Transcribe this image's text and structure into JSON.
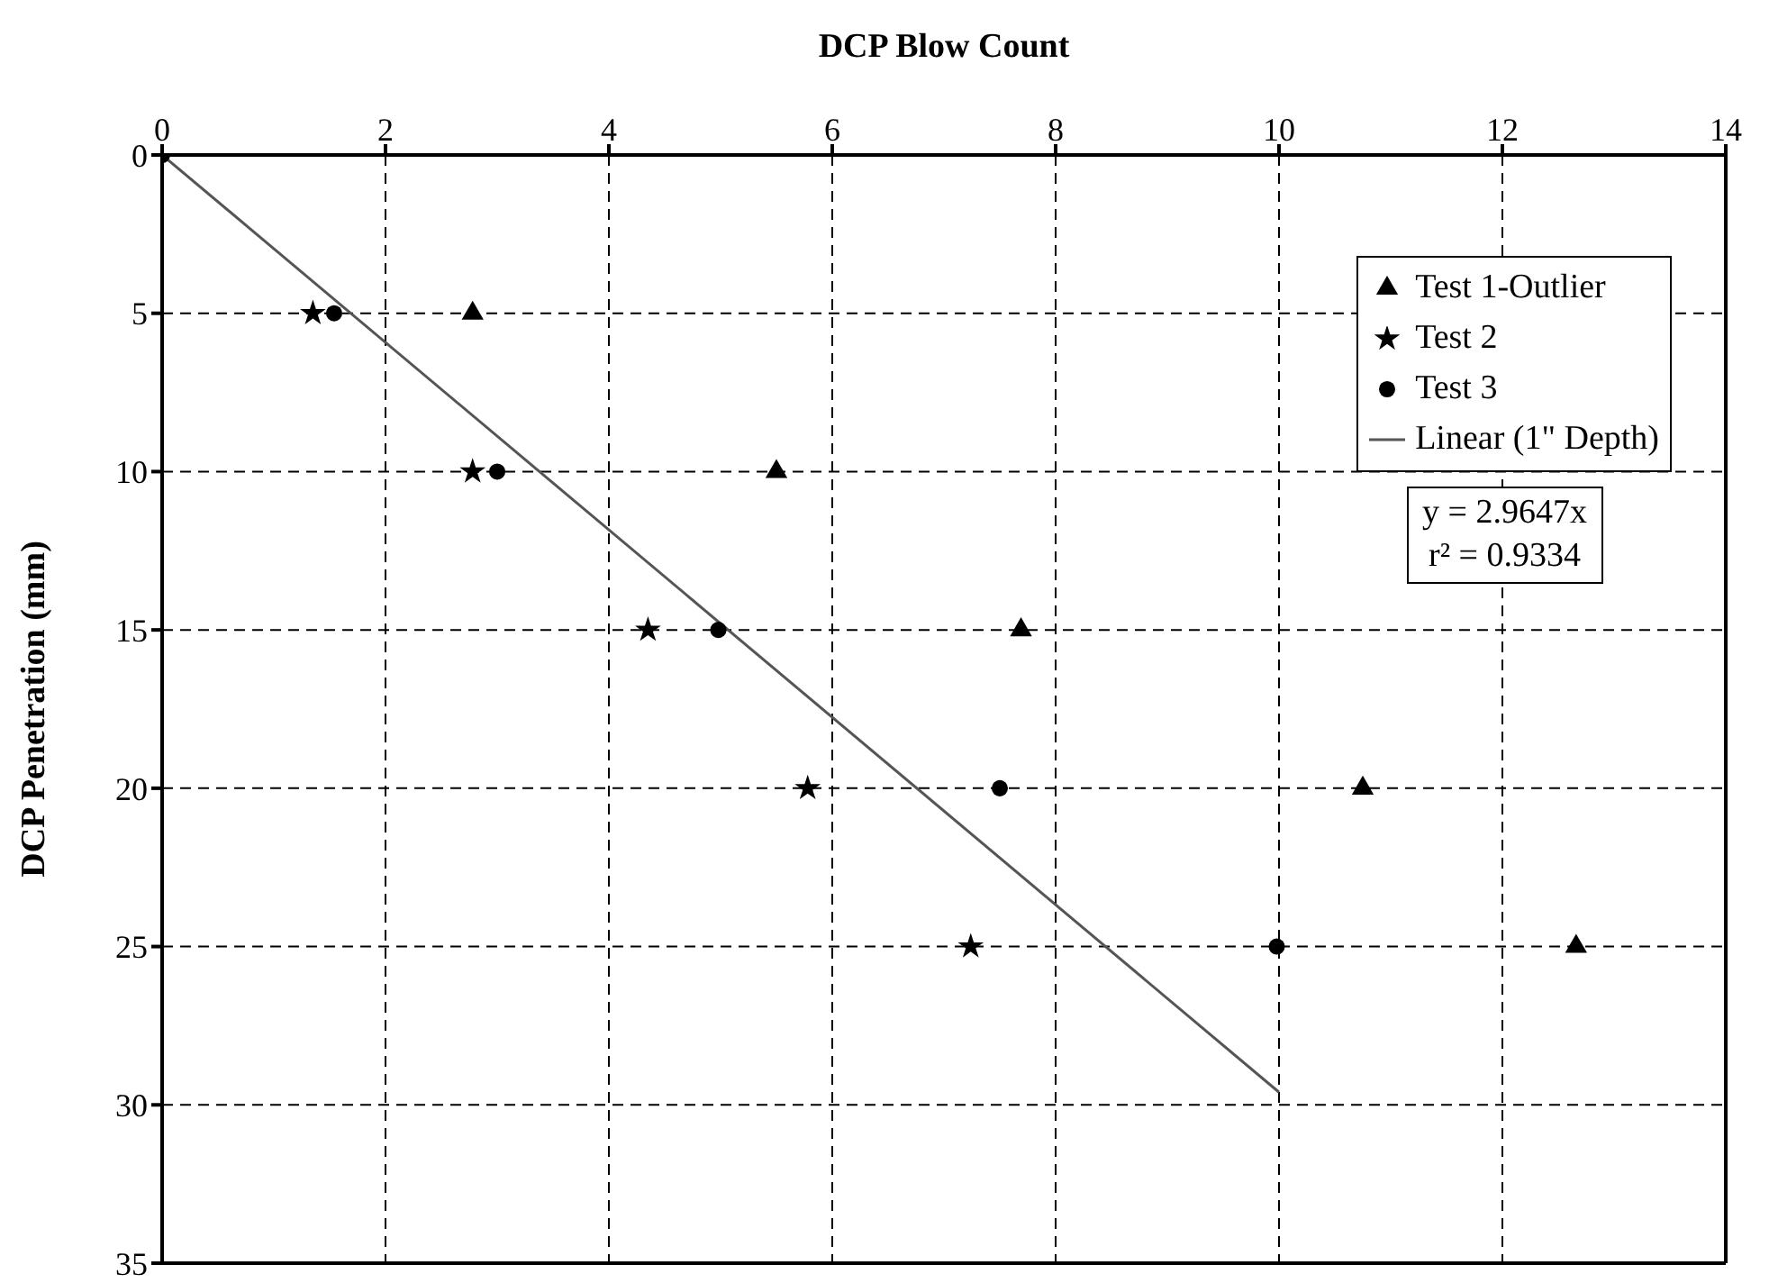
{
  "chart_data": {
    "type": "scatter",
    "xlabel": "DCP Blow Count",
    "ylabel": "DCP Penetration (mm)",
    "xlim": [
      0,
      14
    ],
    "xticks": [
      0,
      2,
      4,
      6,
      8,
      10,
      12,
      14
    ],
    "ylim": [
      35,
      0
    ],
    "yticks": [
      0,
      5,
      10,
      15,
      20,
      25,
      30,
      35
    ],
    "grid": true,
    "legend": "top right",
    "series": [
      {
        "name": "Test 1-Outlier",
        "color": "#000000",
        "marker": "triangle",
        "x": [
          2.78,
          5.5,
          7.69,
          10.75,
          12.66
        ],
        "values": [
          5,
          10,
          15,
          20,
          25
        ]
      },
      {
        "name": "Test 2",
        "color": "#000000",
        "marker": "star",
        "x": [
          1.35,
          2.78,
          4.35,
          5.78,
          7.24
        ],
        "values": [
          5,
          10,
          15,
          20,
          25
        ]
      },
      {
        "name": "Test 3",
        "color": "#000000",
        "marker": "circle",
        "x": [
          0,
          1.54,
          3.0,
          4.98,
          7.5,
          9.98
        ],
        "values": [
          0,
          5,
          10,
          15,
          20,
          25
        ]
      },
      {
        "name": "Linear (1\" Depth)",
        "type": "line",
        "color": "#555555",
        "marker": "none",
        "line_style": "solid",
        "x": [
          0,
          10
        ],
        "values": [
          0,
          29.6
        ]
      }
    ],
    "annotations": [
      "y = 2.9647x",
      "r² = 0.9334"
    ]
  }
}
